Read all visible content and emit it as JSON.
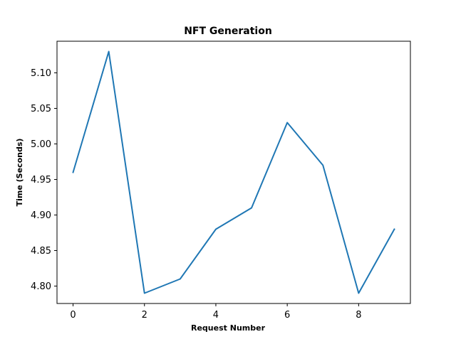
{
  "chart_data": {
    "type": "line",
    "title": "NFT Generation",
    "xlabel": "Request Number",
    "ylabel": "Time (Seconds)",
    "x": [
      0,
      1,
      2,
      3,
      4,
      5,
      6,
      7,
      8,
      9
    ],
    "series": [
      {
        "values": [
          4.96,
          5.13,
          4.79,
          4.81,
          4.88,
          4.91,
          5.03,
          4.97,
          4.79,
          4.88
        ],
        "color": "#1f77b4"
      }
    ],
    "xlim": [
      -0.45,
      9.45
    ],
    "ylim": [
      4.7755,
      5.1445
    ],
    "x_ticks": [
      0,
      2,
      4,
      6,
      8
    ],
    "x_tick_labels": [
      "0",
      "2",
      "4",
      "6",
      "8"
    ],
    "y_ticks": [
      4.8,
      4.85,
      4.9,
      4.95,
      5.0,
      5.05,
      5.1
    ],
    "y_tick_labels": [
      "4.80",
      "4.85",
      "4.90",
      "4.95",
      "5.00",
      "5.05",
      "5.10"
    ],
    "grid": false,
    "legend": false
  }
}
